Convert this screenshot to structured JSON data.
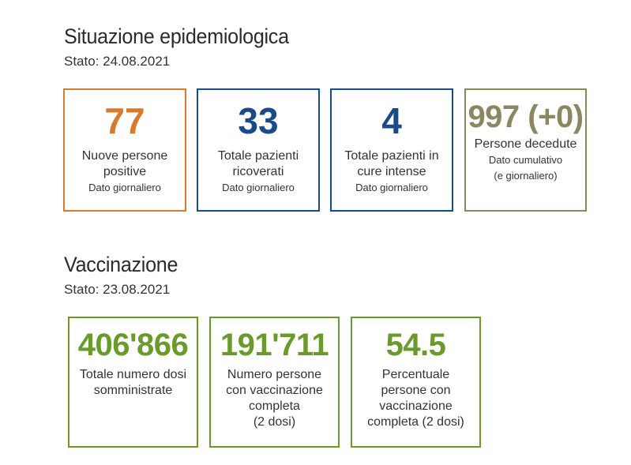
{
  "epi": {
    "title": "Situazione epidemiologica",
    "stato": "Stato: 24.08.2021",
    "cards": [
      {
        "value": "77",
        "label_l1": "Nuove persone",
        "label_l2": "positive",
        "sub_l1": "Dato giornaliero",
        "sub_l2": "",
        "color": "#d97a2b"
      },
      {
        "value": "33",
        "label_l1": "Totale pazienti",
        "label_l2": "ricoverati",
        "sub_l1": "Dato giornaliero",
        "sub_l2": "",
        "color": "#1b4a8a"
      },
      {
        "value": "4",
        "label_l1": "Totale pazienti in",
        "label_l2": "cure intense",
        "sub_l1": "Dato giornaliero",
        "sub_l2": "",
        "color": "#1b4a8a"
      },
      {
        "value": "997 (+0)",
        "label_l1": "Persone decedute",
        "label_l2": "",
        "sub_l1": "Dato cumulativo",
        "sub_l2": "(e giornaliero)",
        "color": "#8c8760"
      }
    ]
  },
  "vacc": {
    "title": "Vaccinazione",
    "stato": "Stato: 23.08.2021",
    "cards": [
      {
        "value": "406'866",
        "lines": [
          "Totale numero dosi",
          "somministrate"
        ],
        "color": "#6a9a2c"
      },
      {
        "value": "191'711",
        "lines": [
          "Numero persone",
          "con vaccinazione",
          "completa",
          "(2 dosi)"
        ],
        "color": "#6a9a2c"
      },
      {
        "value": "54.5",
        "lines": [
          "Percentuale",
          "persone con",
          "vaccinazione",
          "completa (2 dosi)"
        ],
        "color": "#6a9a2c"
      }
    ]
  }
}
